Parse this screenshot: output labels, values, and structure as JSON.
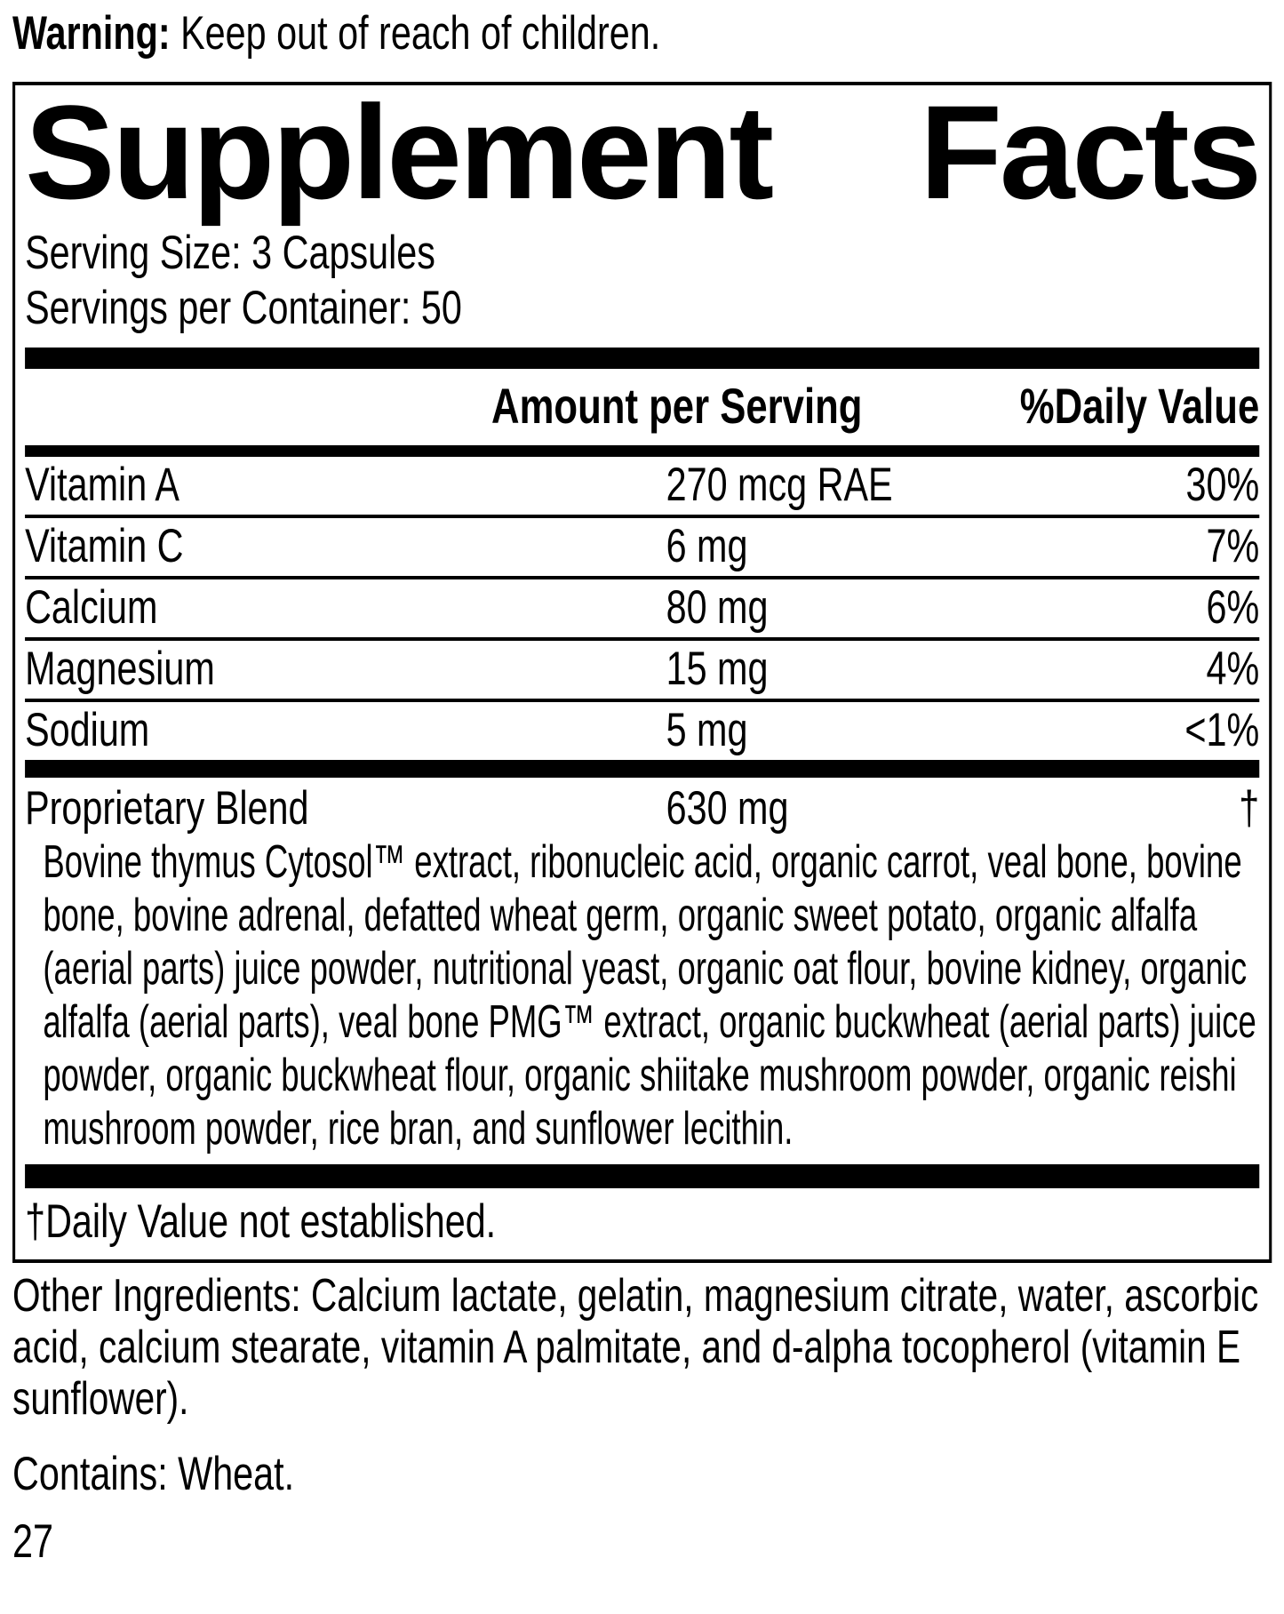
{
  "page": {
    "warning_label": "Warning:",
    "warning_text": " Keep out of reach of children.",
    "page_number": "27"
  },
  "supplement_facts": {
    "title_left": "Supplement",
    "title_right": "Facts",
    "serving_size": "Serving Size: 3 Capsules",
    "servings_per_container": "Servings per Container: 50",
    "columns": {
      "amount": "Amount per Serving",
      "daily_value": "%Daily Value"
    },
    "nutrients": [
      {
        "name": "Vitamin A",
        "amount": "270 mcg RAE",
        "dv": "30%"
      },
      {
        "name": "Vitamin C",
        "amount": "6 mg",
        "dv": "7%"
      },
      {
        "name": "Calcium",
        "amount": "80 mg",
        "dv": "6%"
      },
      {
        "name": "Magnesium",
        "amount": "15 mg",
        "dv": "4%"
      },
      {
        "name": "Sodium",
        "amount": "5 mg",
        "dv": "<1%"
      }
    ],
    "proprietary_blend": {
      "name": "Proprietary Blend",
      "amount": "630 mg",
      "dv": "†"
    },
    "blend_ingredients": "Bovine thymus Cytosol™ extract, ribonucleic acid, organic carrot, veal bone, bovine bone, bovine adrenal, defatted wheat germ, organic sweet potato, organic alfalfa (aerial parts) juice powder, nutritional yeast, organic oat flour, bovine kidney, organic alfalfa (aerial parts), veal bone PMG™ extract, organic buckwheat (aerial parts) juice powder, organic buckwheat flour, organic shiitake mushroom powder, organic reishi mushroom powder, rice bran, and sunflower lecithin.",
    "footnote": "†Daily Value not established."
  },
  "other_ingredients": "Other Ingredients: Calcium lactate, gelatin, magnesium citrate, water, ascorbic acid, calcium stearate, vitamin A palmitate, and d-alpha tocopherol (vitamin E sunflower).",
  "contains": "Contains: Wheat."
}
